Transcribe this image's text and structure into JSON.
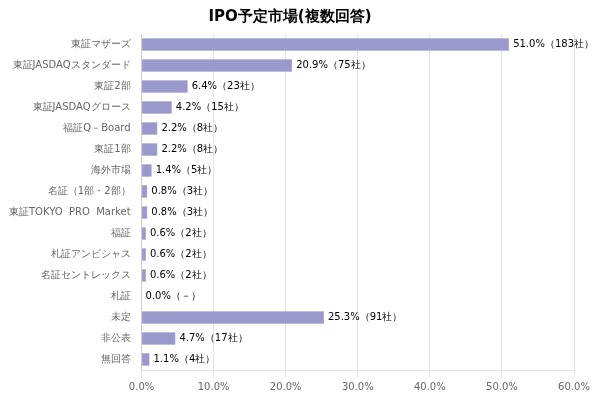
{
  "chart_data": {
    "type": "bar",
    "title": "IPO予定市場(複数回答)",
    "orientation": "horizontal",
    "categories": [
      "東証マザーズ",
      "東証JASDAQスタンダード",
      "東証2部",
      "東証JASDAQグロース",
      "福証Q－Board",
      "東証1部",
      "海外市場",
      "名証（1部・2部）",
      "東証TOKYO  PRO  Market",
      "福証",
      "札証アンビシャス",
      "名証セントレックス",
      "札証",
      "未定",
      "非公表",
      "無回答"
    ],
    "values": [
      51.0,
      20.9,
      6.4,
      4.2,
      2.2,
      2.2,
      1.4,
      0.8,
      0.8,
      0.6,
      0.6,
      0.6,
      0.0,
      25.3,
      4.7,
      1.1
    ],
    "value_labels": [
      "51.0%（183社）",
      "20.9%（75社）",
      "6.4%（23社）",
      "4.2%（15社）",
      "2.2%（8社）",
      "2.2%（8社）",
      "1.4%（5社）",
      "0.8%（3社）",
      "0.8%（3社）",
      "0.6%（2社）",
      "0.6%（2社）",
      "0.6%（2社）",
      "0.0%（－）",
      "25.3%（91社）",
      "4.7%（17社）",
      "1.1%（4社）"
    ],
    "data_labels": true,
    "color": "#9999cc",
    "xlim": [
      0,
      60
    ],
    "xticks": [
      {
        "value": 0,
        "label": "0.0%"
      },
      {
        "value": 10,
        "label": "10.0%"
      },
      {
        "value": 20,
        "label": "20.0%"
      },
      {
        "value": 30,
        "label": "30.0%"
      },
      {
        "value": 40,
        "label": "40.0%"
      },
      {
        "value": 50,
        "label": "50.0%"
      },
      {
        "value": 60,
        "label": "60.0%"
      }
    ],
    "grid": true
  }
}
